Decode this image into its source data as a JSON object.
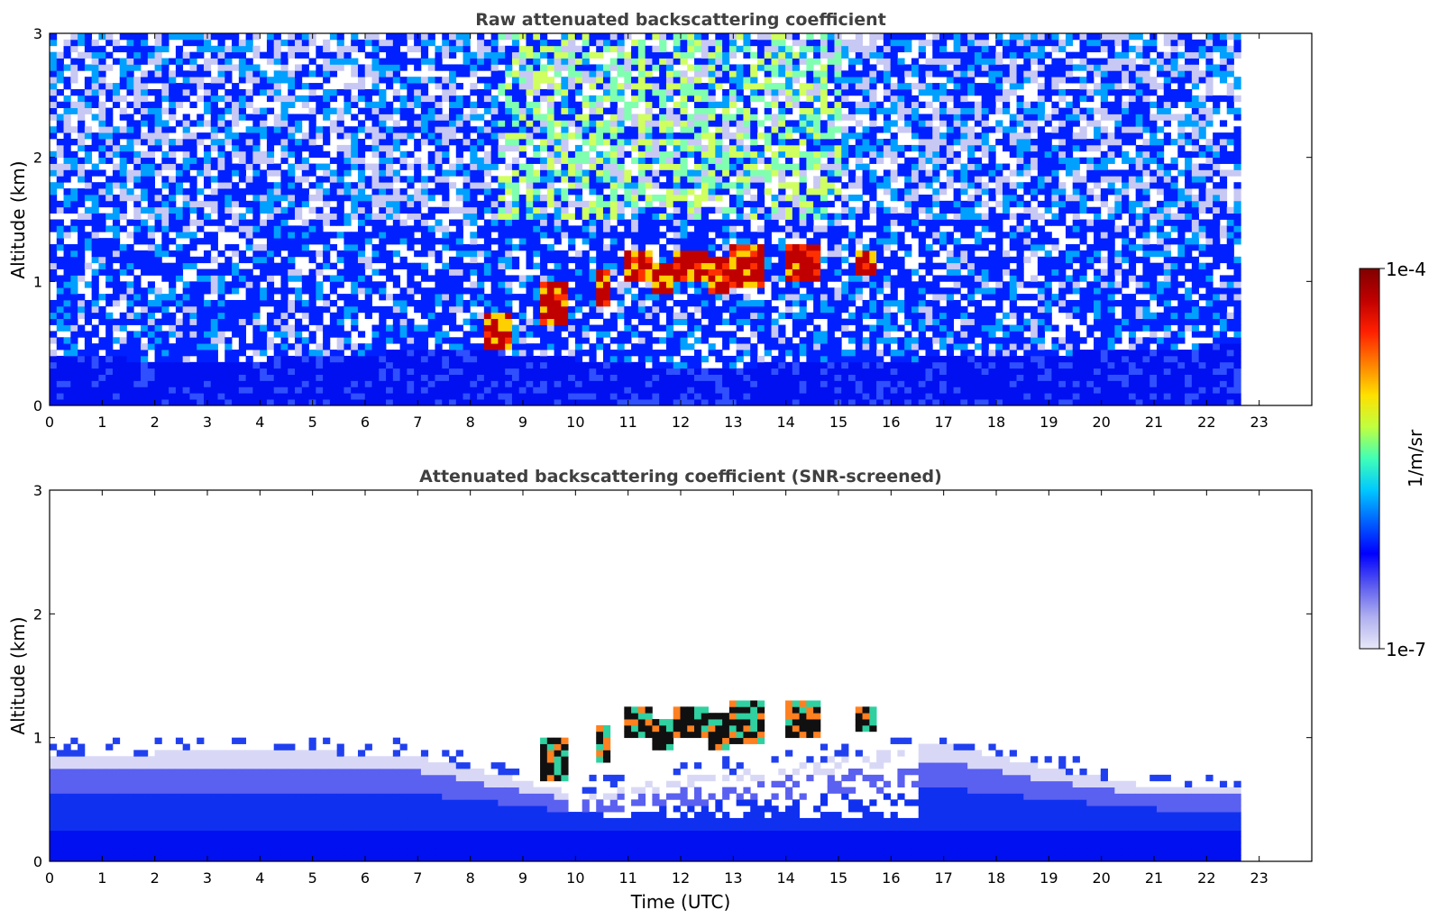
{
  "chart_data": [
    {
      "type": "heatmap",
      "title": "Raw attenuated backscattering coefficient",
      "xlabel": "",
      "ylabel": "Altitude (km)",
      "xlim": [
        0,
        24
      ],
      "ylim": [
        0,
        3
      ],
      "x_ticks": [
        "0",
        "1",
        "2",
        "3",
        "4",
        "5",
        "6",
        "7",
        "8",
        "9",
        "10",
        "11",
        "12",
        "13",
        "14",
        "15",
        "16",
        "17",
        "18",
        "19",
        "20",
        "21",
        "22",
        "23"
      ],
      "y_ticks": [
        "0",
        "1",
        "2",
        "3"
      ],
      "data_end_hour": 22.65,
      "grid": false,
      "field": {
        "boundary_layer_top_km": [
          {
            "hour": 0,
            "km": 0.4
          },
          {
            "hour": 3,
            "km": 0.35
          },
          {
            "hour": 6,
            "km": 0.42
          },
          {
            "hour": 8,
            "km": 0.45
          },
          {
            "hour": 12,
            "km": 0.3
          },
          {
            "hour": 18,
            "km": 0.4
          },
          {
            "hour": 21,
            "km": 0.45
          },
          {
            "hour": 22.65,
            "km": 0.5
          }
        ],
        "cloud_segments": [
          {
            "start_hour": 8.2,
            "end_hour": 8.8,
            "base_km": 0.45,
            "top_km": 0.75
          },
          {
            "start_hour": 9.3,
            "end_hour": 9.8,
            "base_km": 0.65,
            "top_km": 1.0
          },
          {
            "start_hour": 10.4,
            "end_hour": 10.6,
            "base_km": 0.8,
            "top_km": 1.1
          },
          {
            "start_hour": 10.9,
            "end_hour": 11.5,
            "base_km": 1.0,
            "top_km": 1.25
          },
          {
            "start_hour": 11.5,
            "end_hour": 11.9,
            "base_km": 0.9,
            "top_km": 1.15
          },
          {
            "start_hour": 11.9,
            "end_hour": 12.5,
            "base_km": 1.0,
            "top_km": 1.25
          },
          {
            "start_hour": 12.5,
            "end_hour": 12.9,
            "base_km": 0.9,
            "top_km": 1.2
          },
          {
            "start_hour": 12.9,
            "end_hour": 13.6,
            "base_km": 0.95,
            "top_km": 1.3
          },
          {
            "start_hour": 14.0,
            "end_hour": 14.6,
            "base_km": 1.0,
            "top_km": 1.3
          },
          {
            "start_hour": 15.3,
            "end_hour": 15.7,
            "base_km": 1.05,
            "top_km": 1.25
          }
        ]
      }
    },
    {
      "type": "heatmap",
      "title": "Attenuated backscattering coefficient (SNR-screened)",
      "xlabel": "Time (UTC)",
      "ylabel": "Altitude (km)",
      "xlim": [
        0,
        24
      ],
      "ylim": [
        0,
        3
      ],
      "x_ticks": [
        "0",
        "1",
        "2",
        "3",
        "4",
        "5",
        "6",
        "7",
        "8",
        "9",
        "10",
        "11",
        "12",
        "13",
        "14",
        "15",
        "16",
        "17",
        "18",
        "19",
        "20",
        "21",
        "22",
        "23"
      ],
      "y_ticks": [
        "0",
        "1",
        "2",
        "3"
      ],
      "data_end_hour": 22.65,
      "grid": false,
      "field": {
        "aerosol_layer_top_km": [
          {
            "hour": 0,
            "km": 0.85
          },
          {
            "hour": 4,
            "km": 0.9
          },
          {
            "hour": 7,
            "km": 0.85
          },
          {
            "hour": 8,
            "km": 0.75
          },
          {
            "hour": 10,
            "km": 0.55
          },
          {
            "hour": 17,
            "km": 0.95
          },
          {
            "hour": 19,
            "km": 0.75
          },
          {
            "hour": 21,
            "km": 0.6
          },
          {
            "hour": 22.65,
            "km": 0.6
          }
        ]
      }
    }
  ],
  "colorbar": {
    "label": "1/m/sr",
    "max_label": "1e-4",
    "min_label": "1e-7",
    "scale": "log",
    "colormap": "jet",
    "stops": [
      "#e8e8f8",
      "#b0b0f0",
      "#5a5af0",
      "#0000ff",
      "#0060ff",
      "#00c8ff",
      "#40ffb8",
      "#c0ff40",
      "#ffe000",
      "#ff8000",
      "#ff2000",
      "#c00000",
      "#800000"
    ]
  }
}
